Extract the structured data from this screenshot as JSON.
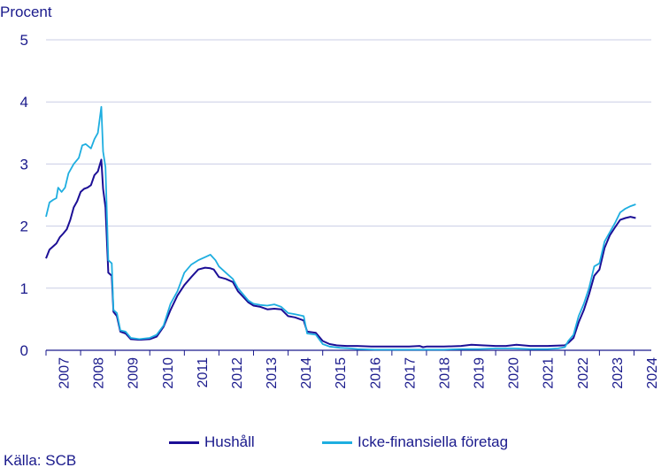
{
  "chart_data": {
    "type": "line",
    "ylabel": "Procent",
    "ylim": [
      0,
      5
    ],
    "yticks": [
      "0",
      "1",
      "2",
      "3",
      "4",
      "5"
    ],
    "x_tick_labels": [
      "2007",
      "2008",
      "2009",
      "2010",
      "2011",
      "2012",
      "2013",
      "2014",
      "2015",
      "2016",
      "2017",
      "2018",
      "2019",
      "2020",
      "2021",
      "2022",
      "2023",
      "2024"
    ],
    "xlim": [
      2007.0,
      2024.5
    ],
    "grid": "horizontal",
    "legend_position": "bottom",
    "series": [
      {
        "name": "Hushåll",
        "color": "#1c0f96",
        "points": [
          [
            2007.0,
            1.48
          ],
          [
            2007.1,
            1.62
          ],
          [
            2007.2,
            1.67
          ],
          [
            2007.3,
            1.72
          ],
          [
            2007.4,
            1.82
          ],
          [
            2007.5,
            1.88
          ],
          [
            2007.6,
            1.95
          ],
          [
            2007.7,
            2.1
          ],
          [
            2007.8,
            2.3
          ],
          [
            2007.9,
            2.4
          ],
          [
            2008.0,
            2.55
          ],
          [
            2008.1,
            2.6
          ],
          [
            2008.2,
            2.62
          ],
          [
            2008.3,
            2.66
          ],
          [
            2008.4,
            2.82
          ],
          [
            2008.5,
            2.88
          ],
          [
            2008.6,
            3.07
          ],
          [
            2008.65,
            2.6
          ],
          [
            2008.72,
            2.3
          ],
          [
            2008.8,
            1.25
          ],
          [
            2008.9,
            1.2
          ],
          [
            2008.95,
            0.62
          ],
          [
            2009.05,
            0.55
          ],
          [
            2009.15,
            0.3
          ],
          [
            2009.3,
            0.27
          ],
          [
            2009.45,
            0.18
          ],
          [
            2009.7,
            0.17
          ],
          [
            2010.0,
            0.18
          ],
          [
            2010.2,
            0.22
          ],
          [
            2010.4,
            0.38
          ],
          [
            2010.6,
            0.65
          ],
          [
            2010.8,
            0.88
          ],
          [
            2011.0,
            1.05
          ],
          [
            2011.2,
            1.18
          ],
          [
            2011.4,
            1.3
          ],
          [
            2011.6,
            1.33
          ],
          [
            2011.75,
            1.32
          ],
          [
            2011.85,
            1.3
          ],
          [
            2012.0,
            1.18
          ],
          [
            2012.2,
            1.15
          ],
          [
            2012.4,
            1.1
          ],
          [
            2012.55,
            0.95
          ],
          [
            2012.7,
            0.86
          ],
          [
            2012.85,
            0.77
          ],
          [
            2013.0,
            0.72
          ],
          [
            2013.2,
            0.7
          ],
          [
            2013.4,
            0.66
          ],
          [
            2013.6,
            0.67
          ],
          [
            2013.8,
            0.66
          ],
          [
            2014.0,
            0.55
          ],
          [
            2014.2,
            0.53
          ],
          [
            2014.45,
            0.48
          ],
          [
            2014.55,
            0.3
          ],
          [
            2014.8,
            0.28
          ],
          [
            2015.0,
            0.15
          ],
          [
            2015.2,
            0.1
          ],
          [
            2015.4,
            0.08
          ],
          [
            2015.7,
            0.07
          ],
          [
            2016.0,
            0.07
          ],
          [
            2016.4,
            0.06
          ],
          [
            2017.0,
            0.06
          ],
          [
            2017.5,
            0.06
          ],
          [
            2017.8,
            0.07
          ],
          [
            2017.9,
            0.05
          ],
          [
            2018.0,
            0.06
          ],
          [
            2018.5,
            0.06
          ],
          [
            2019.0,
            0.07
          ],
          [
            2019.3,
            0.09
          ],
          [
            2019.6,
            0.08
          ],
          [
            2020.0,
            0.07
          ],
          [
            2020.3,
            0.07
          ],
          [
            2020.6,
            0.09
          ],
          [
            2021.0,
            0.07
          ],
          [
            2021.5,
            0.07
          ],
          [
            2022.0,
            0.08
          ],
          [
            2022.1,
            0.12
          ],
          [
            2022.25,
            0.2
          ],
          [
            2022.4,
            0.45
          ],
          [
            2022.55,
            0.65
          ],
          [
            2022.7,
            0.9
          ],
          [
            2022.85,
            1.2
          ],
          [
            2023.0,
            1.3
          ],
          [
            2023.15,
            1.65
          ],
          [
            2023.3,
            1.85
          ],
          [
            2023.45,
            1.98
          ],
          [
            2023.6,
            2.1
          ],
          [
            2023.75,
            2.13
          ],
          [
            2023.9,
            2.15
          ],
          [
            2024.05,
            2.13
          ]
        ]
      },
      {
        "name": "Icke-finansiella företag",
        "color": "#1eaee0",
        "points": [
          [
            2007.0,
            2.15
          ],
          [
            2007.1,
            2.38
          ],
          [
            2007.2,
            2.42
          ],
          [
            2007.3,
            2.45
          ],
          [
            2007.35,
            2.62
          ],
          [
            2007.45,
            2.55
          ],
          [
            2007.55,
            2.62
          ],
          [
            2007.65,
            2.85
          ],
          [
            2007.8,
            3.0
          ],
          [
            2007.95,
            3.1
          ],
          [
            2008.05,
            3.3
          ],
          [
            2008.15,
            3.32
          ],
          [
            2008.3,
            3.25
          ],
          [
            2008.4,
            3.4
          ],
          [
            2008.5,
            3.5
          ],
          [
            2008.6,
            3.92
          ],
          [
            2008.65,
            3.2
          ],
          [
            2008.72,
            2.95
          ],
          [
            2008.8,
            1.45
          ],
          [
            2008.9,
            1.4
          ],
          [
            2008.95,
            0.65
          ],
          [
            2009.05,
            0.6
          ],
          [
            2009.15,
            0.32
          ],
          [
            2009.3,
            0.3
          ],
          [
            2009.45,
            0.2
          ],
          [
            2009.7,
            0.18
          ],
          [
            2010.0,
            0.2
          ],
          [
            2010.2,
            0.25
          ],
          [
            2010.4,
            0.4
          ],
          [
            2010.6,
            0.75
          ],
          [
            2010.8,
            0.95
          ],
          [
            2011.0,
            1.25
          ],
          [
            2011.2,
            1.38
          ],
          [
            2011.4,
            1.45
          ],
          [
            2011.6,
            1.5
          ],
          [
            2011.75,
            1.54
          ],
          [
            2011.9,
            1.45
          ],
          [
            2012.0,
            1.35
          ],
          [
            2012.2,
            1.25
          ],
          [
            2012.4,
            1.15
          ],
          [
            2012.55,
            1.0
          ],
          [
            2012.7,
            0.9
          ],
          [
            2012.85,
            0.8
          ],
          [
            2013.0,
            0.75
          ],
          [
            2013.2,
            0.73
          ],
          [
            2013.4,
            0.72
          ],
          [
            2013.6,
            0.74
          ],
          [
            2013.8,
            0.7
          ],
          [
            2014.0,
            0.6
          ],
          [
            2014.2,
            0.58
          ],
          [
            2014.45,
            0.55
          ],
          [
            2014.55,
            0.27
          ],
          [
            2014.8,
            0.25
          ],
          [
            2015.0,
            0.1
          ],
          [
            2015.2,
            0.06
          ],
          [
            2015.5,
            0.04
          ],
          [
            2015.8,
            0.03
          ],
          [
            2016.0,
            0.02
          ],
          [
            2016.5,
            0.01
          ],
          [
            2017.0,
            0.01
          ],
          [
            2017.5,
            0.01
          ],
          [
            2018.0,
            0.01
          ],
          [
            2018.5,
            0.01
          ],
          [
            2019.0,
            0.02
          ],
          [
            2019.5,
            0.02
          ],
          [
            2020.0,
            0.03
          ],
          [
            2020.5,
            0.03
          ],
          [
            2021.0,
            0.02
          ],
          [
            2021.5,
            0.02
          ],
          [
            2021.8,
            0.03
          ],
          [
            2022.0,
            0.05
          ],
          [
            2022.1,
            0.15
          ],
          [
            2022.25,
            0.25
          ],
          [
            2022.4,
            0.55
          ],
          [
            2022.55,
            0.75
          ],
          [
            2022.7,
            1.0
          ],
          [
            2022.85,
            1.35
          ],
          [
            2023.0,
            1.4
          ],
          [
            2023.15,
            1.75
          ],
          [
            2023.3,
            1.9
          ],
          [
            2023.45,
            2.05
          ],
          [
            2023.6,
            2.22
          ],
          [
            2023.75,
            2.28
          ],
          [
            2023.9,
            2.32
          ],
          [
            2024.05,
            2.35
          ]
        ]
      }
    ],
    "source": "Källa: SCB"
  }
}
